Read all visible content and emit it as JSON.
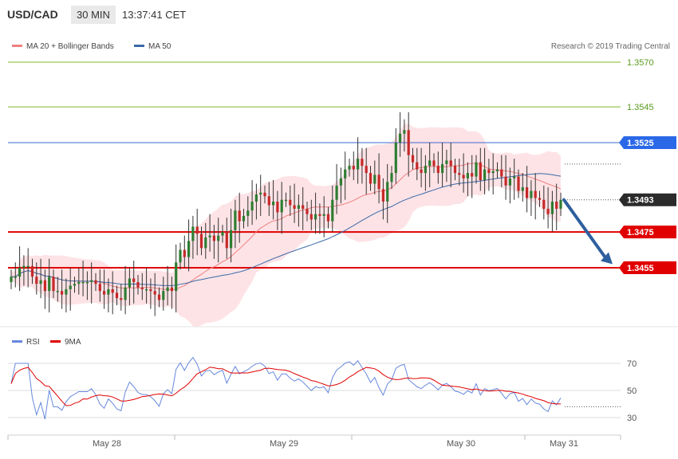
{
  "header": {
    "symbol": "USD/CAD",
    "timeframe": "30 MIN",
    "time": "13:37:41 CET"
  },
  "colors": {
    "bull": "#2e7d32",
    "bear": "#c62828",
    "ma20": "#f08080",
    "band": "#fde3e6",
    "ma50": "#3a6aa8",
    "support": "#e00000",
    "resistance_green": "#7dba2a",
    "current_line": "#3a6ad0",
    "rsi": "#6688dd",
    "rsi_ma": "#e00000",
    "arrow": "#2e5f9e"
  },
  "chart_data": [
    {
      "type": "candlestick",
      "legend": [
        {
          "label": "MA 20 + Bollinger Bands",
          "color": "#f08080"
        },
        {
          "label": "MA 50",
          "color": "#3a6aa8"
        }
      ],
      "copyright": "Research © 2019 Trading Central",
      "ylim": [
        1.3418,
        1.3585
      ],
      "x_labels": [
        "May 28",
        "May 29",
        "May 30",
        "May 31"
      ],
      "levels": [
        {
          "value": 1.357,
          "label": "1.3570",
          "kind": "resistance"
        },
        {
          "value": 1.3545,
          "label": "1.3545",
          "kind": "resistance"
        },
        {
          "value": 1.3525,
          "label": "1.3525",
          "kind": "pivot"
        },
        {
          "value": 1.3493,
          "label": "1.3493",
          "kind": "last"
        },
        {
          "value": 1.3475,
          "label": "1.3475",
          "kind": "support"
        },
        {
          "value": 1.3455,
          "label": "1.3455",
          "kind": "support"
        }
      ],
      "closes": [
        1.345,
        1.345,
        1.3455,
        1.3456,
        1.3456,
        1.345,
        1.3446,
        1.3448,
        1.3442,
        1.345,
        1.3442,
        1.3442,
        1.344,
        1.3443,
        1.3445,
        1.3446,
        1.3447,
        1.3447,
        1.3447,
        1.3448,
        1.3446,
        1.3442,
        1.344,
        1.3443,
        1.3441,
        1.3438,
        1.3437,
        1.3444,
        1.3449,
        1.3447,
        1.3444,
        1.3443,
        1.3443,
        1.3442,
        1.344,
        1.3437,
        1.3442,
        1.3444,
        1.3442,
        1.3458,
        1.3465,
        1.3461,
        1.347,
        1.3478,
        1.3474,
        1.3466,
        1.3472,
        1.3473,
        1.347,
        1.3473,
        1.3475,
        1.3466,
        1.3476,
        1.3487,
        1.3481,
        1.3484,
        1.3487,
        1.3492,
        1.3496,
        1.3497,
        1.3495,
        1.349,
        1.3492,
        1.3486,
        1.3493,
        1.3493,
        1.349,
        1.3488,
        1.349,
        1.3488,
        1.3485,
        1.3482,
        1.3485,
        1.3484,
        1.3485,
        1.3481,
        1.3493,
        1.3501,
        1.3505,
        1.351,
        1.3512,
        1.351,
        1.3516,
        1.3512,
        1.3508,
        1.3502,
        1.3507,
        1.3499,
        1.3492,
        1.3503,
        1.3508,
        1.3525,
        1.353,
        1.3532,
        1.3518,
        1.3514,
        1.351,
        1.3508,
        1.3512,
        1.3515,
        1.3512,
        1.3508,
        1.3513,
        1.3515,
        1.3512,
        1.3508,
        1.3507,
        1.3505,
        1.3508,
        1.3506,
        1.3514,
        1.3504,
        1.351,
        1.3508,
        1.3509,
        1.351,
        1.3506,
        1.3501,
        1.3505,
        1.3506,
        1.3498,
        1.35,
        1.3494,
        1.3498,
        1.3494,
        1.3493,
        1.3488,
        1.3485,
        1.3492,
        1.3488,
        1.3493
      ],
      "rsi": {
        "legend": [
          {
            "label": "RSI",
            "color": "#6688dd"
          },
          {
            "label": "9MA",
            "color": "#e00000"
          }
        ],
        "ylim": [
          20,
          85
        ],
        "levels": [
          70,
          50,
          30
        ],
        "dashed_level": 38
      }
    }
  ]
}
